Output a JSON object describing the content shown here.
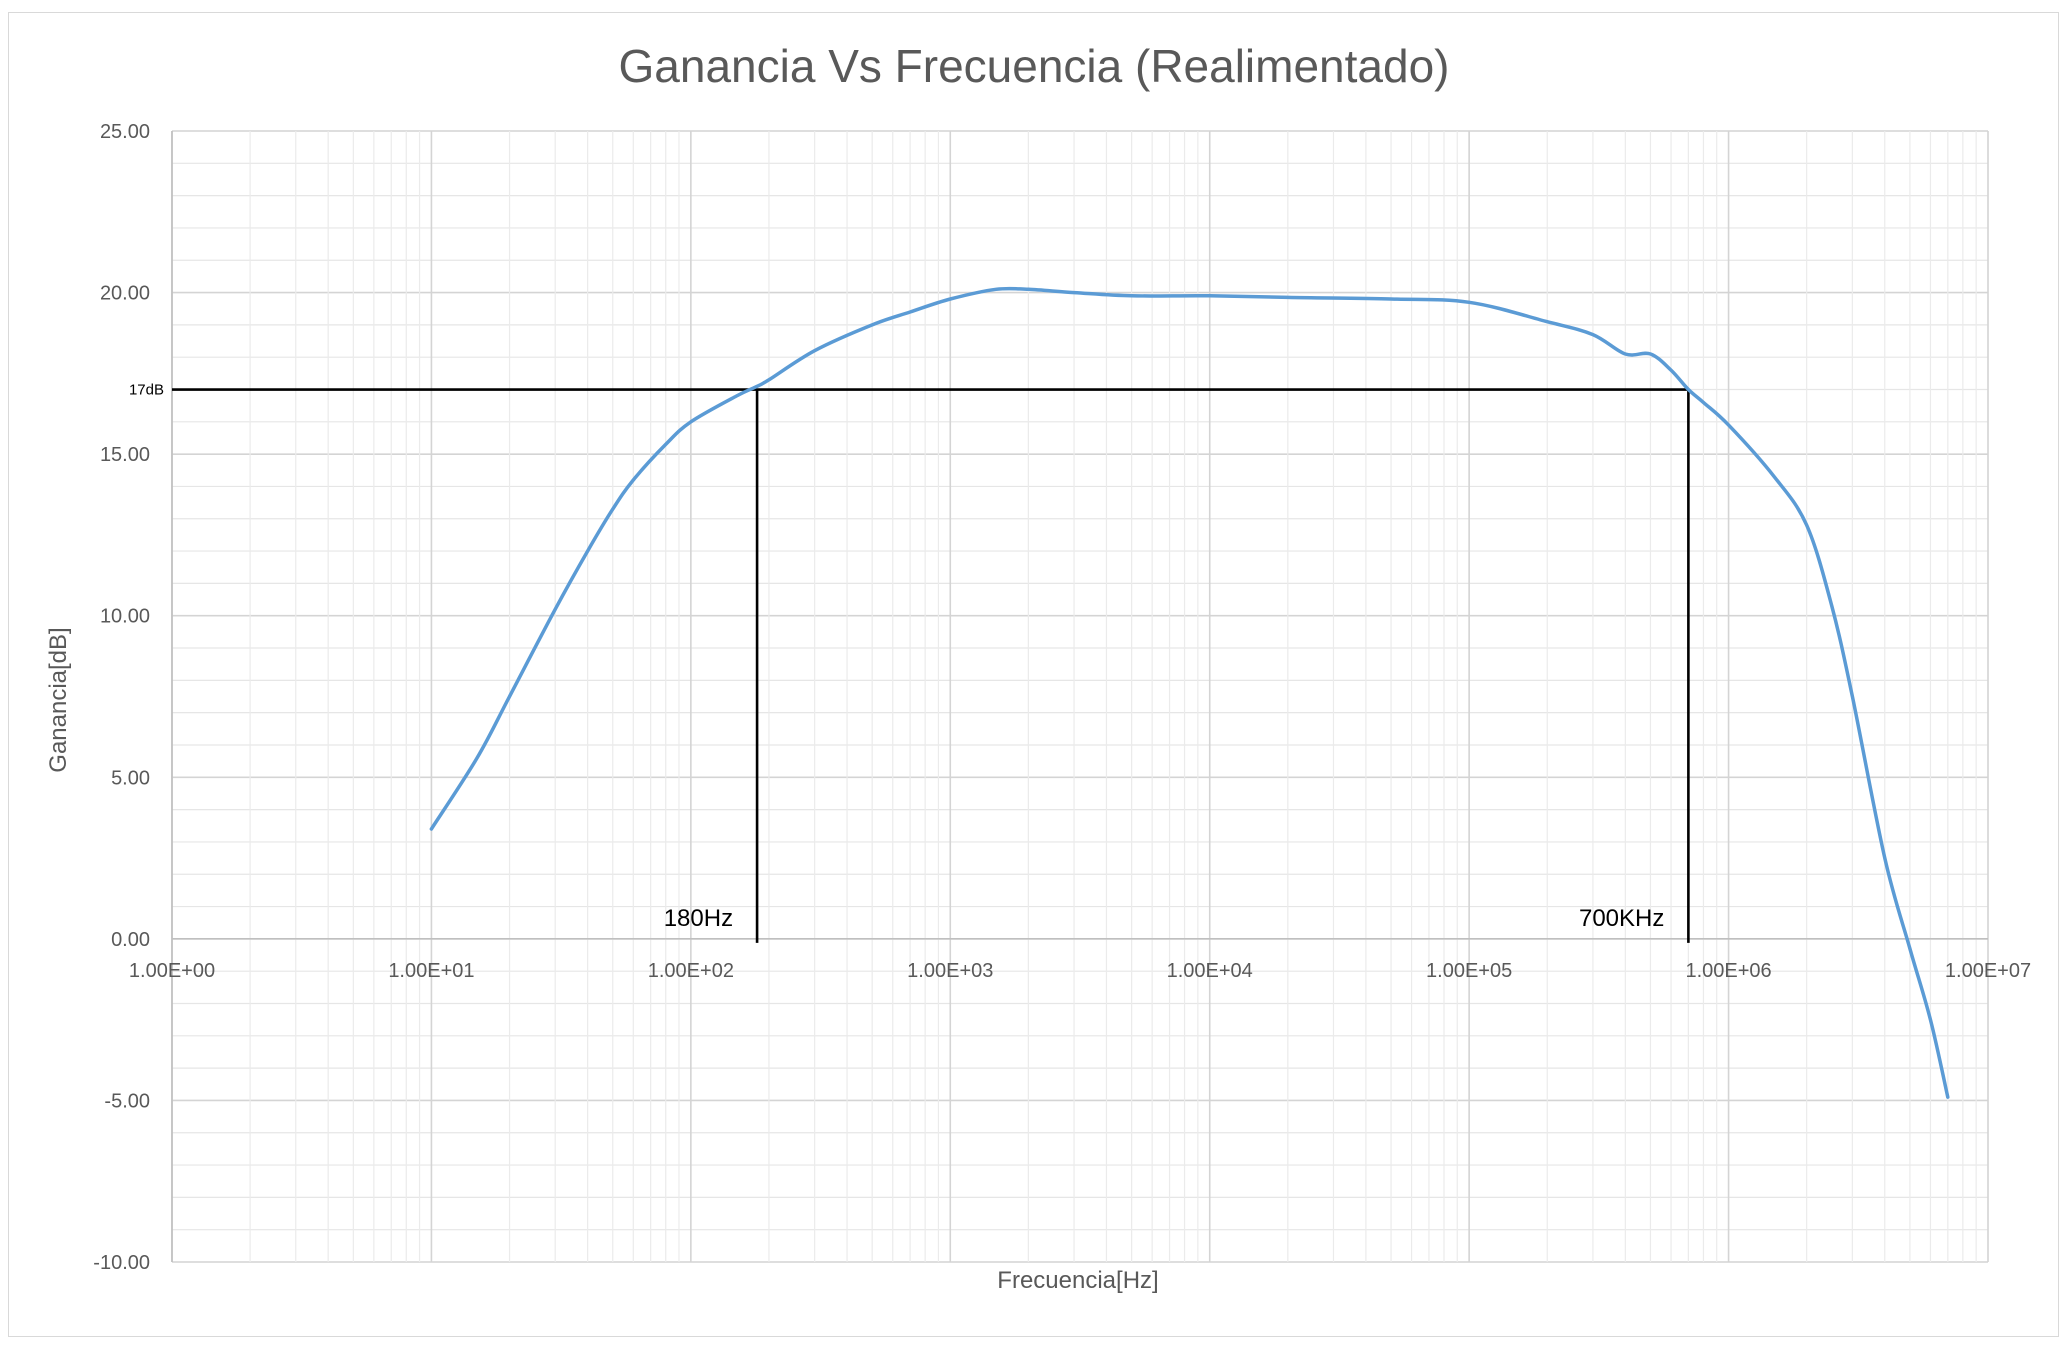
{
  "chart_data": {
    "type": "line",
    "title": "Ganancia Vs Frecuencia (Realimentado)",
    "xlabel": "Frecuencia[Hz]",
    "ylabel": "Ganancia[dB]",
    "x_scale": "log",
    "xlim": [
      1,
      10000000
    ],
    "ylim": [
      -10,
      25
    ],
    "grid": true,
    "legend": "none",
    "x_ticks": [
      "1.00E+00",
      "1.00E+01",
      "1.00E+02",
      "1.00E+03",
      "1.00E+04",
      "1.00E+05",
      "1.00E+06",
      "1.00E+07"
    ],
    "y_ticks": [
      "25.00",
      "20.00",
      "15.00",
      "10.00",
      "5.00",
      "0.00",
      "-5.00",
      "-10.00"
    ],
    "series": [
      {
        "color": "#5b9bd5",
        "x": [
          10,
          15,
          20,
          30,
          40,
          50,
          60,
          80,
          100,
          150,
          180,
          200,
          300,
          500,
          700,
          1000,
          1500,
          2000,
          3000,
          5000,
          10000,
          20000,
          50000,
          100000,
          200000,
          300000,
          400000,
          500000,
          600000,
          700000,
          800000,
          1000000,
          1500000,
          2000000,
          2500000,
          3000000,
          4000000,
          5000000,
          6000000,
          7000000
        ],
        "y": [
          3.4,
          5.6,
          7.5,
          10.2,
          12.0,
          13.3,
          14.2,
          15.3,
          16.0,
          16.8,
          17.1,
          17.3,
          18.2,
          19.0,
          19.4,
          19.8,
          20.1,
          20.1,
          20.0,
          19.9,
          19.9,
          19.85,
          19.8,
          19.7,
          19.1,
          18.7,
          18.1,
          18.1,
          17.6,
          17.0,
          16.6,
          15.9,
          14.3,
          12.8,
          10.3,
          7.5,
          2.5,
          -0.3,
          -2.5,
          -4.9
        ]
      }
    ],
    "annotations": {
      "hline_value": 17,
      "hline_label": "17dB",
      "markers": [
        {
          "x": 180,
          "label": "180Hz"
        },
        {
          "x": 700000,
          "label": "700KHz"
        }
      ]
    }
  }
}
